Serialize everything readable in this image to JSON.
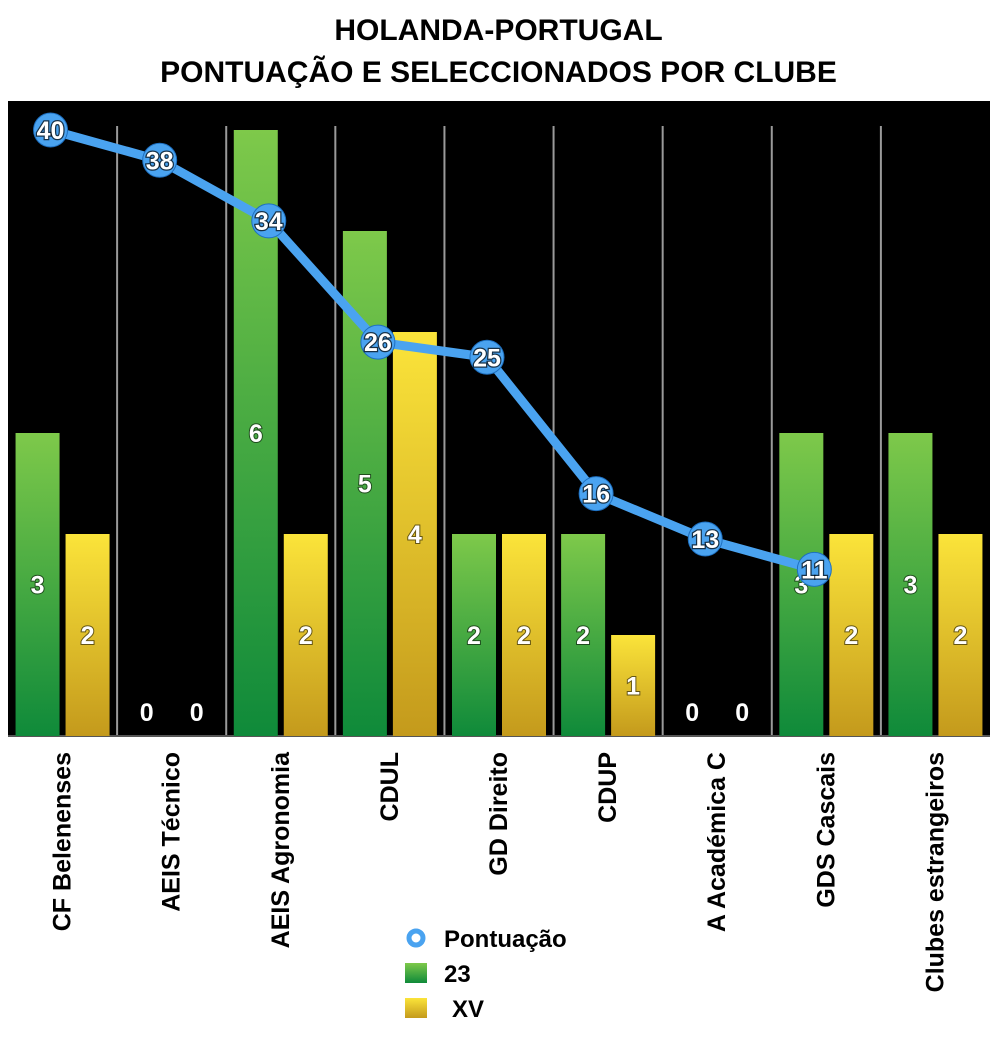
{
  "chart_data": {
    "type": "bar",
    "title_line1": "HOLANDA-PORTUGAL",
    "title_line2": "PONTUAÇÃO E SELECCIONADOS POR CLUBE",
    "categories": [
      "CF Belenenses",
      "AEIS Técnico",
      "AEIS Agronomia",
      "CDUL",
      "GD Direito",
      "CDUP",
      "A Académica C",
      "GDS Cascais",
      "Clubes estrangeiros"
    ],
    "series": [
      {
        "name": "23",
        "kind": "bar",
        "values": [
          3,
          0,
          6,
          5,
          2,
          2,
          0,
          3,
          3
        ],
        "color": "#1e9a3c"
      },
      {
        "name": "XV",
        "kind": "bar",
        "values": [
          2,
          0,
          2,
          4,
          2,
          1,
          0,
          2,
          2
        ],
        "color": "#f2d21a"
      },
      {
        "name": "Pontuação",
        "kind": "line",
        "values": [
          40,
          38,
          34,
          26,
          25,
          16,
          13,
          11,
          null
        ],
        "color": "#4aa3f0"
      }
    ],
    "bar_ylim": [
      0,
      6
    ],
    "line_ylim": [
      0,
      40
    ],
    "background": "#000000",
    "grid_vertical": true,
    "legend_position": "bottom-center",
    "legend": [
      {
        "label": "Pontuação",
        "marker": "circle",
        "color": "#4aa3f0"
      },
      {
        "label": "23",
        "marker": "square",
        "color": "#1e9a3c"
      },
      {
        "label": "XV",
        "marker": "square",
        "color": "#f2d21a"
      }
    ]
  }
}
